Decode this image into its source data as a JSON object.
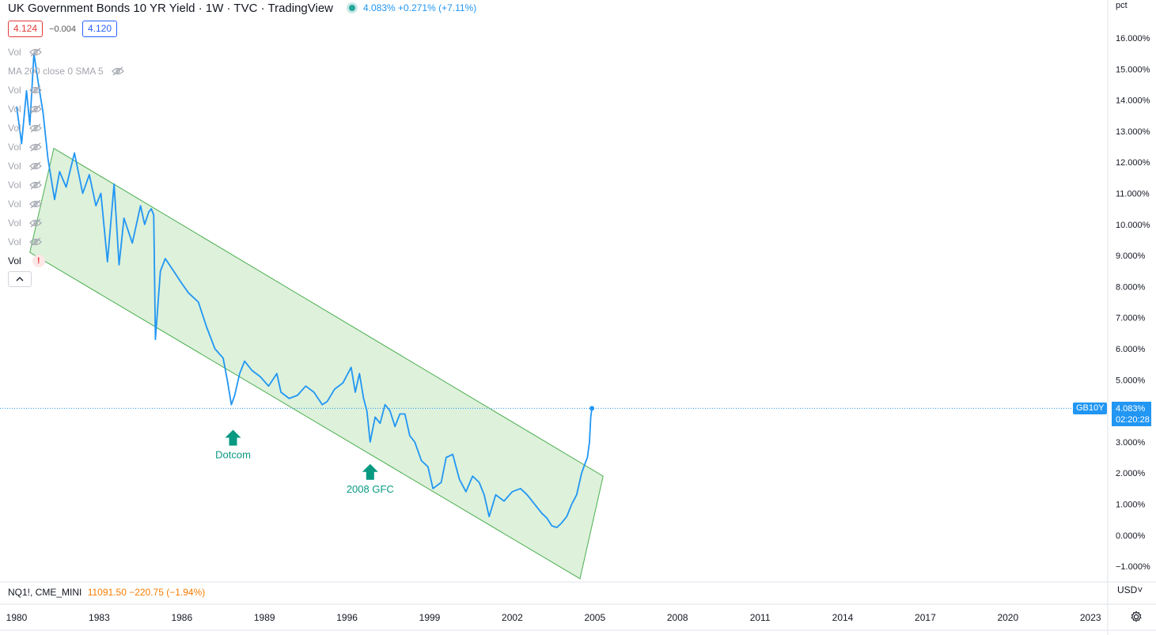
{
  "header": {
    "title": "UK Government Bonds 10 YR Yield · 1W · TVC · TradingView",
    "quote": "4.083% +0.271% (+7.11%)"
  },
  "prices": {
    "bid": "4.124",
    "spread": "−0.004",
    "ask": "4.120"
  },
  "legend": {
    "items": [
      "Vol",
      "MA 200 close 0 SMA 5",
      "Vol",
      "Vol",
      "Vol",
      "Vol",
      "Vol",
      "Vol",
      "Vol",
      "Vol",
      "Vol"
    ],
    "active_item": "Vol",
    "warning_glyph": "!"
  },
  "bottom_legend": {
    "symbol": "NQ1!, CME_MINI",
    "value": "11091.50 −220.75 (−1.94%)"
  },
  "axis": {
    "unit": "pct",
    "currency": "USD"
  },
  "last": {
    "symbol": "GB10Y",
    "value": "4.083%",
    "countdown": "02:20:28"
  },
  "colors": {
    "line": "#2196f3",
    "channel_fill": "#d7eed5",
    "channel_stroke": "#4caf50",
    "marker": "#089981"
  },
  "chart_data": {
    "type": "line",
    "title": "UK Government Bonds 10 YR Yield · 1W · TVC · TradingView",
    "x_ticks": [
      "1980",
      "1983",
      "1986",
      "1989",
      "1996",
      "1999",
      "2002",
      "2005",
      "2008",
      "2011",
      "2014",
      "2017",
      "2020",
      "2023"
    ],
    "y_ticks": [
      "16.000%",
      "15.000%",
      "14.000%",
      "13.000%",
      "12.000%",
      "11.000%",
      "10.000%",
      "9.000%",
      "8.000%",
      "7.000%",
      "6.000%",
      "5.000%",
      "4.000%",
      "3.000%",
      "2.000%",
      "1.000%",
      "0.000%",
      "−1.000%"
    ],
    "y_tick_values": [
      16,
      15,
      14,
      13,
      12,
      11,
      10,
      9,
      8,
      7,
      6,
      5,
      4,
      3,
      2,
      1,
      0,
      -1
    ],
    "ylim": [
      -1.25,
      16.5
    ],
    "grid": false,
    "series": [
      {
        "points": [
          [
            0,
            13.8
          ],
          [
            0.06,
            12.6
          ],
          [
            0.12,
            14.3
          ],
          [
            0.16,
            13.2
          ],
          [
            0.21,
            15.5
          ],
          [
            0.26,
            14.6
          ],
          [
            0.32,
            13.6
          ],
          [
            0.38,
            12.1
          ],
          [
            0.46,
            10.8
          ],
          [
            0.52,
            11.7
          ],
          [
            0.6,
            11.2
          ],
          [
            0.7,
            12.3
          ],
          [
            0.8,
            11.0
          ],
          [
            0.88,
            11.6
          ],
          [
            0.96,
            10.6
          ],
          [
            1.02,
            11.0
          ],
          [
            1.1,
            8.8
          ],
          [
            1.18,
            11.3
          ],
          [
            1.24,
            8.7
          ],
          [
            1.3,
            10.2
          ],
          [
            1.4,
            9.4
          ],
          [
            1.5,
            10.6
          ],
          [
            1.55,
            10.0
          ],
          [
            1.6,
            10.4
          ],
          [
            1.63,
            10.5
          ],
          [
            1.66,
            10.3
          ],
          [
            1.68,
            6.3
          ],
          [
            1.74,
            8.5
          ],
          [
            1.8,
            8.9
          ],
          [
            1.9,
            8.5
          ],
          [
            2.0,
            8.1
          ],
          [
            2.08,
            7.8
          ],
          [
            2.2,
            7.5
          ],
          [
            2.3,
            6.7
          ],
          [
            2.4,
            6.0
          ],
          [
            2.5,
            5.7
          ],
          [
            2.55,
            5.0
          ],
          [
            2.6,
            4.2
          ],
          [
            2.64,
            4.5
          ],
          [
            2.7,
            5.2
          ],
          [
            2.76,
            5.6
          ],
          [
            2.85,
            5.3
          ],
          [
            2.95,
            5.1
          ],
          [
            3.05,
            4.8
          ],
          [
            3.15,
            5.2
          ],
          [
            3.2,
            4.6
          ],
          [
            3.3,
            4.4
          ],
          [
            3.4,
            4.5
          ],
          [
            3.5,
            4.8
          ],
          [
            3.6,
            4.6
          ],
          [
            3.7,
            4.2
          ],
          [
            3.76,
            4.3
          ],
          [
            3.85,
            4.7
          ],
          [
            3.95,
            4.9
          ],
          [
            4.05,
            5.4
          ],
          [
            4.1,
            4.6
          ],
          [
            4.15,
            5.2
          ],
          [
            4.2,
            4.4
          ],
          [
            4.24,
            4.0
          ],
          [
            4.28,
            3.0
          ],
          [
            4.34,
            3.8
          ],
          [
            4.4,
            3.6
          ],
          [
            4.46,
            4.2
          ],
          [
            4.52,
            4.0
          ],
          [
            4.58,
            3.5
          ],
          [
            4.64,
            3.9
          ],
          [
            4.7,
            3.9
          ],
          [
            4.76,
            3.2
          ],
          [
            4.82,
            3.0
          ],
          [
            4.9,
            2.4
          ],
          [
            4.98,
            2.2
          ],
          [
            5.04,
            1.5
          ],
          [
            5.14,
            1.7
          ],
          [
            5.2,
            2.5
          ],
          [
            5.28,
            2.6
          ],
          [
            5.36,
            1.8
          ],
          [
            5.44,
            1.4
          ],
          [
            5.52,
            1.9
          ],
          [
            5.6,
            1.7
          ],
          [
            5.66,
            1.3
          ],
          [
            5.72,
            0.6
          ],
          [
            5.8,
            1.3
          ],
          [
            5.9,
            1.1
          ],
          [
            6.0,
            1.4
          ],
          [
            6.1,
            1.5
          ],
          [
            6.18,
            1.3
          ],
          [
            6.24,
            1.1
          ],
          [
            6.3,
            0.9
          ],
          [
            6.36,
            0.7
          ],
          [
            6.42,
            0.55
          ],
          [
            6.48,
            0.3
          ],
          [
            6.54,
            0.25
          ],
          [
            6.6,
            0.4
          ],
          [
            6.66,
            0.6
          ],
          [
            6.72,
            1.0
          ],
          [
            6.78,
            1.3
          ],
          [
            6.84,
            2.0
          ],
          [
            6.88,
            2.3
          ],
          [
            6.91,
            2.5
          ],
          [
            6.935,
            3.0
          ],
          [
            6.95,
            3.8
          ],
          [
            6.965,
            4.083
          ]
        ]
      }
    ],
    "annotations": [
      {
        "label": "Dotcom",
        "x": 2.62,
        "y": 3.9
      },
      {
        "label": "2008 GFC",
        "x": 4.28,
        "y": 2.8
      }
    ],
    "channel": [
      [
        0.45,
        12.45
      ],
      [
        7.1,
        1.9
      ],
      [
        6.82,
        -1.4
      ],
      [
        0.16,
        9.1
      ]
    ],
    "last_price_line": 4.083
  }
}
